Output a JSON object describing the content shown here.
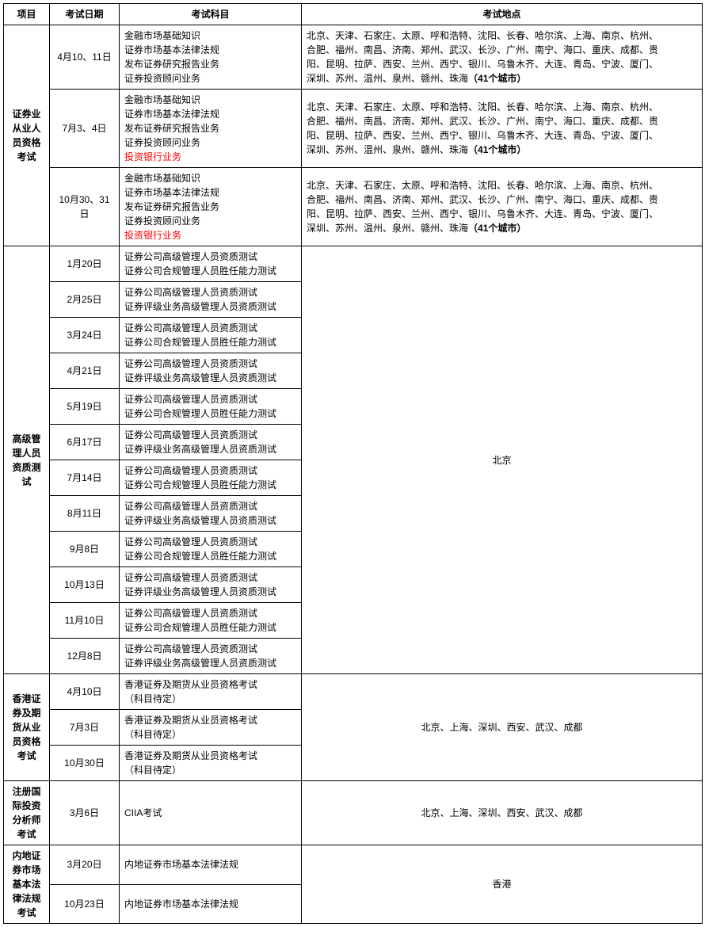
{
  "headers": {
    "project": "项目",
    "date": "考试日期",
    "subject": "考试科目",
    "place": "考试地点"
  },
  "group1": {
    "name": "证券业从业人员资格考试",
    "rows": [
      {
        "date": "4月10、11日",
        "subjects": [
          "金融市场基础知识",
          "证券市场基本法律法规",
          "发布证券研究报告业务",
          "证券投资顾问业务"
        ],
        "place_lines": [
          "北京、天津、石家庄、太原、呼和浩特、沈阳、长春、哈尔滨、上海、南京、杭州、",
          "合肥、福州、南昌、济南、郑州、武汉、长沙、广州、南宁、海口、重庆、成都、贵",
          "阳、昆明、拉萨、西安、兰州、西宁、银川、乌鲁木齐、大连、青岛、宁波、厦门、",
          "深圳、苏州、温州、泉州、赣州、珠海"
        ],
        "city_count": "（41个城市）"
      },
      {
        "date": "7月3、4日",
        "subjects": [
          "金融市场基础知识",
          "证券市场基本法律法规",
          "发布证券研究报告业务",
          "证券投资顾问业务",
          "投资银行业务"
        ],
        "place_lines": [
          "北京、天津、石家庄、太原、呼和浩特、沈阳、长春、哈尔滨、上海、南京、杭州、",
          "合肥、福州、南昌、济南、郑州、武汉、长沙、广州、南宁、海口、重庆、成都、贵",
          "阳、昆明、拉萨、西安、兰州、西宁、银川、乌鲁木齐、大连、青岛、宁波、厦门、",
          "深圳、苏州、温州、泉州、赣州、珠海"
        ],
        "city_count": "（41个城市）"
      },
      {
        "date": "10月30、31日",
        "subjects": [
          "金融市场基础知识",
          "证券市场基本法律法规",
          "发布证券研究报告业务",
          "证券投资顾问业务",
          "投资银行业务"
        ],
        "place_lines": [
          "北京、天津、石家庄、太原、呼和浩特、沈阳、长春、哈尔滨、上海、南京、杭州、",
          "合肥、福州、南昌、济南、郑州、武汉、长沙、广州、南宁、海口、重庆、成都、贵",
          "阳、昆明、拉萨、西安、兰州、西宁、银川、乌鲁木齐、大连、青岛、宁波、厦门、",
          "深圳、苏州、温州、泉州、赣州、珠海"
        ],
        "city_count": "（41个城市）"
      }
    ]
  },
  "group2": {
    "name": "高级管理人员资质测试",
    "place": "北京",
    "rows": [
      {
        "date": "1月20日",
        "subjects": [
          "证券公司高级管理人员资质测试",
          "证券公司合规管理人员胜任能力测试"
        ]
      },
      {
        "date": "2月25日",
        "subjects": [
          "证券公司高级管理人员资质测试",
          "证券评级业务高级管理人员资质测试"
        ]
      },
      {
        "date": "3月24日",
        "subjects": [
          "证券公司高级管理人员资质测试",
          "证券公司合规管理人员胜任能力测试"
        ]
      },
      {
        "date": "4月21日",
        "subjects": [
          "证券公司高级管理人员资质测试",
          "证券评级业务高级管理人员资质测试"
        ]
      },
      {
        "date": "5月19日",
        "subjects": [
          "证券公司高级管理人员资质测试",
          "证券公司合规管理人员胜任能力测试"
        ]
      },
      {
        "date": "6月17日",
        "subjects": [
          "证券公司高级管理人员资质测试",
          "证券评级业务高级管理人员资质测试"
        ]
      },
      {
        "date": "7月14日",
        "subjects": [
          "证券公司高级管理人员资质测试",
          "证券公司合规管理人员胜任能力测试"
        ]
      },
      {
        "date": "8月11日",
        "subjects": [
          "证券公司高级管理人员资质测试",
          "证券评级业务高级管理人员资质测试"
        ]
      },
      {
        "date": "9月8日",
        "subjects": [
          "证券公司高级管理人员资质测试",
          "证券公司合规管理人员胜任能力测试"
        ]
      },
      {
        "date": "10月13日",
        "subjects": [
          "证券公司高级管理人员资质测试",
          "证券评级业务高级管理人员资质测试"
        ]
      },
      {
        "date": "11月10日",
        "subjects": [
          "证券公司高级管理人员资质测试",
          "证券公司合规管理人员胜任能力测试"
        ]
      },
      {
        "date": "12月8日",
        "subjects": [
          "证券公司高级管理人员资质测试",
          "证券评级业务高级管理人员资质测试"
        ]
      }
    ]
  },
  "group3": {
    "name": "香港证券及期货从业员资格考试",
    "place": "北京、上海、深圳、西安、武汉、成都",
    "rows": [
      {
        "date": "4月10日",
        "subjects": [
          "香港证券及期货从业员资格考试",
          "（科目待定）"
        ]
      },
      {
        "date": "7月3日",
        "subjects": [
          "香港证券及期货从业员资格考试",
          "（科目待定）"
        ]
      },
      {
        "date": "10月30日",
        "subjects": [
          "香港证券及期货从业员资格考试",
          "（科目待定）"
        ]
      }
    ]
  },
  "group4": {
    "name": "注册国际投资分析师考试",
    "place": "北京、上海、深圳、西安、武汉、成都",
    "rows": [
      {
        "date": "3月6日",
        "subjects": [
          "CIIA考试"
        ]
      }
    ]
  },
  "group5": {
    "name": "内地证券市场基本法律法规考试",
    "place": "香港",
    "rows": [
      {
        "date": "3月20日",
        "subjects": [
          "内地证券市场基本法律法规"
        ]
      },
      {
        "date": "10月23日",
        "subjects": [
          "内地证券市场基本法律法规"
        ]
      }
    ]
  },
  "red_subject": "投资银行业务"
}
